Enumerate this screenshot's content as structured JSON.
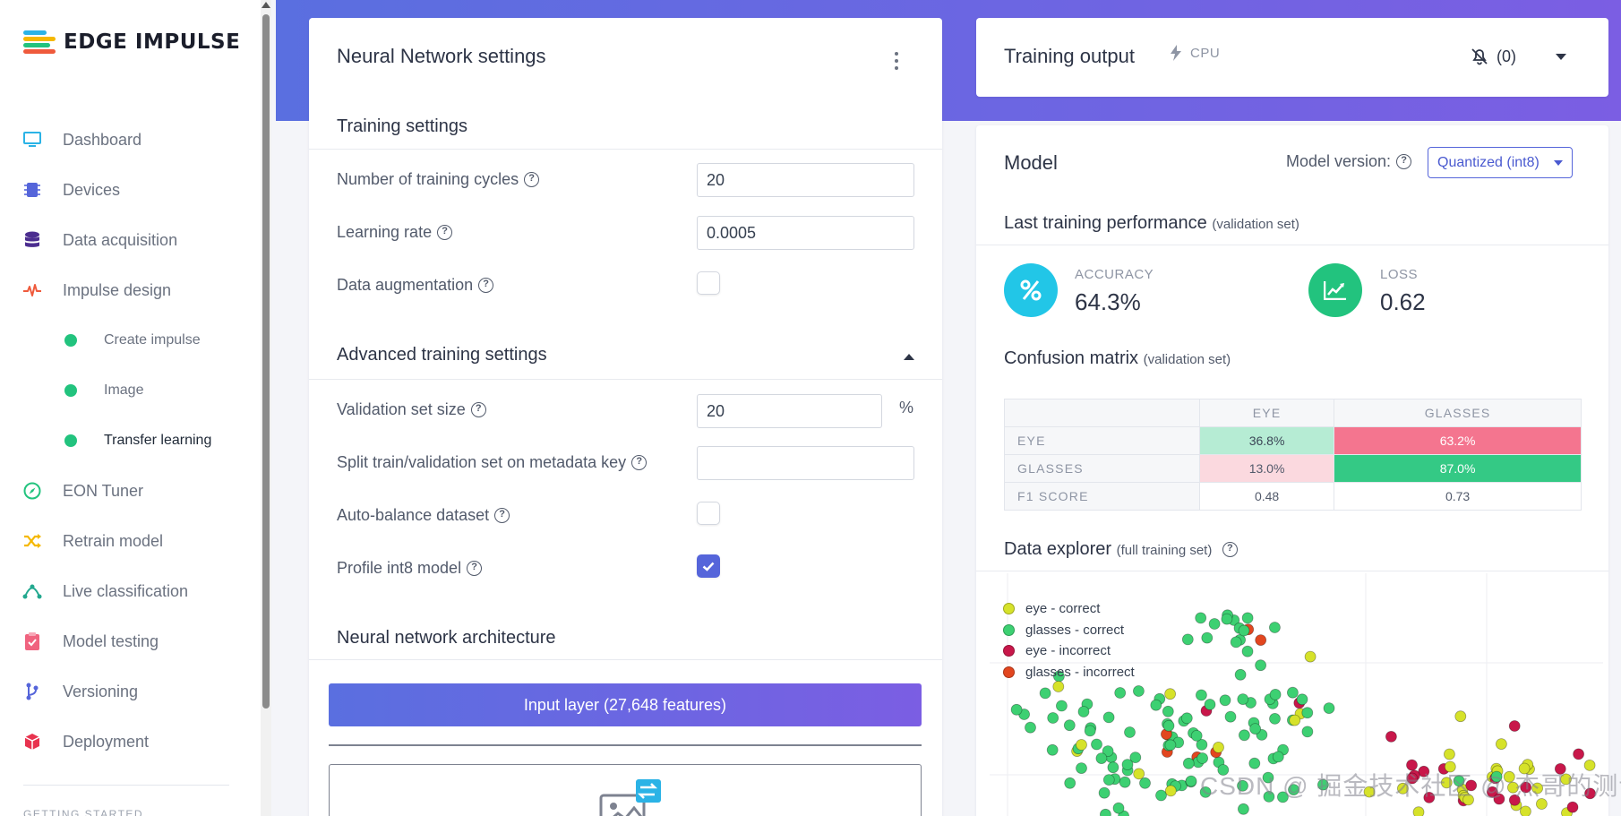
{
  "brand": {
    "name": "EDGE IMPULSE"
  },
  "sidebar": {
    "items": [
      {
        "label": "Dashboard",
        "icon": "monitor-icon",
        "color": "#2bb3e6"
      },
      {
        "label": "Devices",
        "icon": "chip-icon",
        "color": "#5565da"
      },
      {
        "label": "Data acquisition",
        "icon": "database-icon",
        "color": "#4b2d8f"
      },
      {
        "label": "Impulse design",
        "icon": "pulse-icon",
        "color": "#ef5a3c"
      }
    ],
    "sub_items": [
      {
        "label": "Create impulse"
      },
      {
        "label": "Image"
      },
      {
        "label": "Transfer learning"
      }
    ],
    "items_after": [
      {
        "label": "EON Tuner",
        "icon": "compass-icon",
        "color": "#22c37e"
      },
      {
        "label": "Retrain model",
        "icon": "shuffle-icon",
        "color": "#f5b800"
      },
      {
        "label": "Live classification",
        "icon": "nodes-icon",
        "color": "#22a88f"
      },
      {
        "label": "Model testing",
        "icon": "clipboard-check-icon",
        "color": "#f0637f"
      },
      {
        "label": "Versioning",
        "icon": "branch-icon",
        "color": "#5565da"
      },
      {
        "label": "Deployment",
        "icon": "package-icon",
        "color": "#e8334f"
      }
    ],
    "section_heading": "GETTING STARTED"
  },
  "nn": {
    "title": "Neural Network settings",
    "training_title": "Training settings",
    "cycles_label": "Number of training cycles",
    "cycles_value": "20",
    "lr_label": "Learning rate",
    "lr_value": "0.0005",
    "aug_label": "Data augmentation",
    "aug_checked": false,
    "advanced_title": "Advanced training settings",
    "val_label": "Validation set size",
    "val_value": "20",
    "val_unit": "%",
    "split_label": "Split train/validation set on metadata key",
    "split_value": "",
    "balance_label": "Auto-balance dataset",
    "balance_checked": false,
    "int8_label": "Profile int8 model",
    "int8_checked": true,
    "arch_title": "Neural network architecture",
    "input_layer": "Input layer (27,648 features)"
  },
  "training_output": {
    "title": "Training output",
    "device": "CPU",
    "notifications": "(0)"
  },
  "model": {
    "title": "Model",
    "version_label": "Model version:",
    "version_value": "Quantized (int8)",
    "perf_title": "Last training performance",
    "perf_note": "(validation set)",
    "accuracy_label": "ACCURACY",
    "accuracy_value": "64.3%",
    "loss_label": "LOSS",
    "loss_value": "0.62",
    "cm_title": "Confusion matrix",
    "cm_note": "(validation set)",
    "cm_columns": [
      "EYE",
      "GLASSES"
    ],
    "cm_rows": [
      {
        "label": "EYE",
        "values": [
          "36.8%",
          "63.2%"
        ]
      },
      {
        "label": "GLASSES",
        "values": [
          "13.0%",
          "87.0%"
        ]
      }
    ],
    "f1_label": "F1 SCORE",
    "f1_values": [
      "0.48",
      "0.73"
    ],
    "cm_colors": {
      "eye_eye": "#b6ecd4",
      "eye_glasses": "#f4758f",
      "glasses_eye": "#fbd9df",
      "glasses_glasses": "#34c985"
    },
    "explorer_title": "Data explorer",
    "explorer_note": "(full training set)",
    "legend": [
      {
        "label": "eye - correct",
        "color": "#d6e22a"
      },
      {
        "label": "glasses - correct",
        "color": "#3dd072"
      },
      {
        "label": "eye - incorrect",
        "color": "#c8174a"
      },
      {
        "label": "glasses - incorrect",
        "color": "#e2461f"
      }
    ]
  },
  "watermark": "CSDN @ 掘金技术社区 @ 杰哥的测试开发"
}
